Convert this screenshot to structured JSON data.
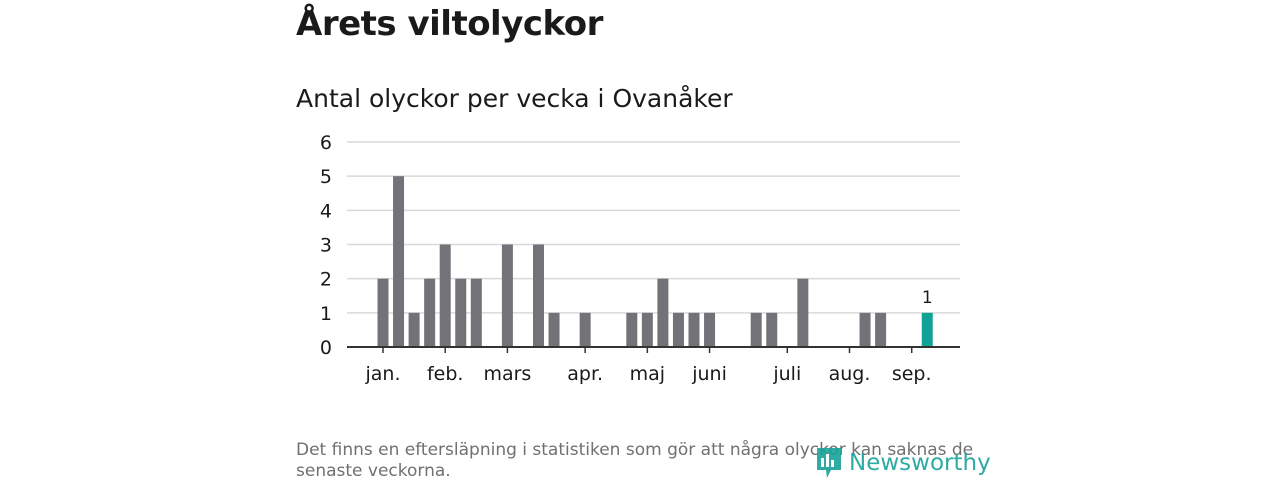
{
  "header": {
    "title": "Årets viltolyckor",
    "subtitle": "Antal olyckor per vecka i Ovanåker"
  },
  "footer": {
    "note": "Det finns en eftersläpning i statistiken som gör att några olyckor kan saknas de senaste veckorna.",
    "brand": "Newsworthy"
  },
  "colors": {
    "bar": "#737278",
    "highlight": "#11a297",
    "brand": "#18a39a",
    "grid": "#d9d9d9",
    "axis": "#333333"
  },
  "chart_data": {
    "type": "bar",
    "x": [
      1,
      2,
      3,
      4,
      5,
      6,
      7,
      8,
      9,
      10,
      11,
      12,
      13,
      14,
      15,
      16,
      17,
      18,
      19,
      20,
      21,
      22,
      23,
      24,
      25,
      26,
      27,
      28,
      29,
      30,
      31,
      32,
      33,
      34,
      35,
      36,
      37
    ],
    "values": [
      2,
      5,
      1,
      2,
      3,
      2,
      2,
      0,
      3,
      0,
      3,
      1,
      0,
      1,
      0,
      0,
      1,
      1,
      2,
      1,
      1,
      1,
      0,
      0,
      1,
      1,
      0,
      2,
      0,
      0,
      0,
      1,
      1,
      0,
      0,
      1,
      0
    ],
    "highlight_index": 35,
    "highlight_label": "1",
    "ylim": [
      0,
      6
    ],
    "yticks": [
      "0",
      "1",
      "2",
      "3",
      "4",
      "5",
      "6"
    ],
    "xticks": [
      {
        "label": "jan.",
        "x": 1
      },
      {
        "label": "feb.",
        "x": 5
      },
      {
        "label": "mars",
        "x": 9
      },
      {
        "label": "apr.",
        "x": 14
      },
      {
        "label": "maj",
        "x": 18
      },
      {
        "label": "juni",
        "x": 22
      },
      {
        "label": "juli",
        "x": 27
      },
      {
        "label": "aug.",
        "x": 31
      },
      {
        "label": "sep.",
        "x": 35
      }
    ],
    "grid": true
  }
}
